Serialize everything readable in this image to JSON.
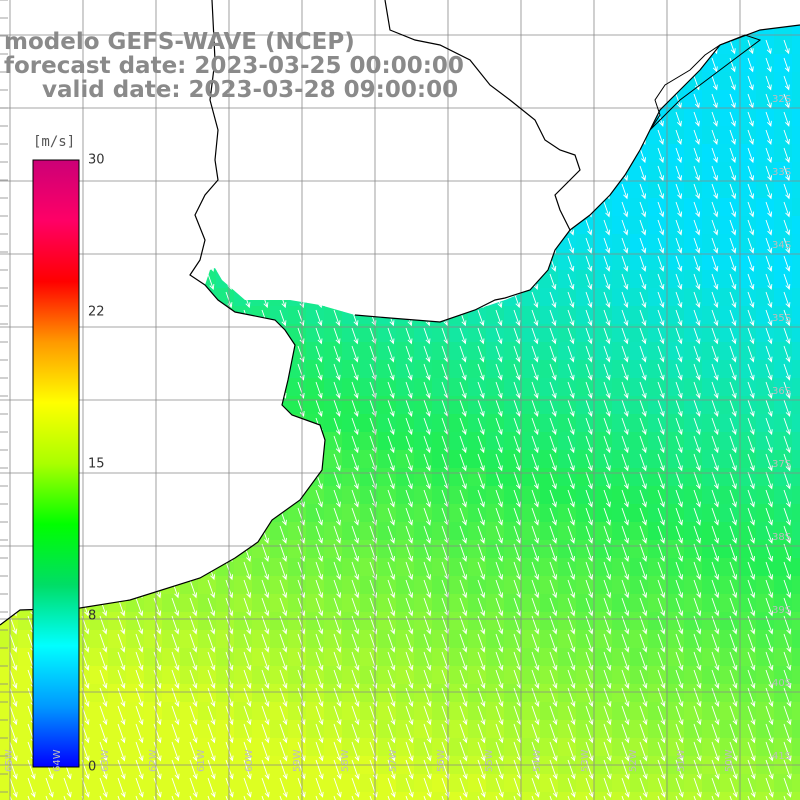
{
  "title": {
    "line1": "modelo GEFS-WAVE (NCEP)",
    "line2": "forecast date: 2023-03-25 00:00:00",
    "line3": "valid date: 2023-03-28 09:00:00"
  },
  "colorbar": {
    "unit_label": "[m/s]",
    "min": 0,
    "max": 30,
    "ticks": [
      {
        "value": 30,
        "label": "30"
      },
      {
        "value": 22,
        "label": "22"
      },
      {
        "value": 15,
        "label": "15"
      },
      {
        "value": 8,
        "label": "8"
      },
      {
        "value": 0,
        "label": "0"
      }
    ],
    "colors": [
      "#0000ff",
      "#0099ff",
      "#00ffff",
      "#00dd66",
      "#00ff00",
      "#aaff00",
      "#ffff00",
      "#ff9900",
      "#ff0000",
      "#ff0066",
      "#cc0077"
    ]
  },
  "longitude_labels": [
    "65W",
    "64W",
    "63W",
    "62W",
    "61W",
    "60W",
    "59W",
    "58W",
    "57W",
    "56W",
    "55W",
    "54W",
    "53W",
    "52W",
    "51W",
    "50W"
  ],
  "latitude_labels": [
    "32S",
    "33S",
    "34S",
    "35S",
    "36S",
    "37S",
    "38S",
    "39S",
    "40S",
    "41S"
  ],
  "wind": {
    "direction": "toward south-southeast",
    "field_colors": {
      "coast_cyan": "#00e0ff",
      "mid_green": "#22ee55",
      "south_yellow": "#ddff22"
    }
  }
}
